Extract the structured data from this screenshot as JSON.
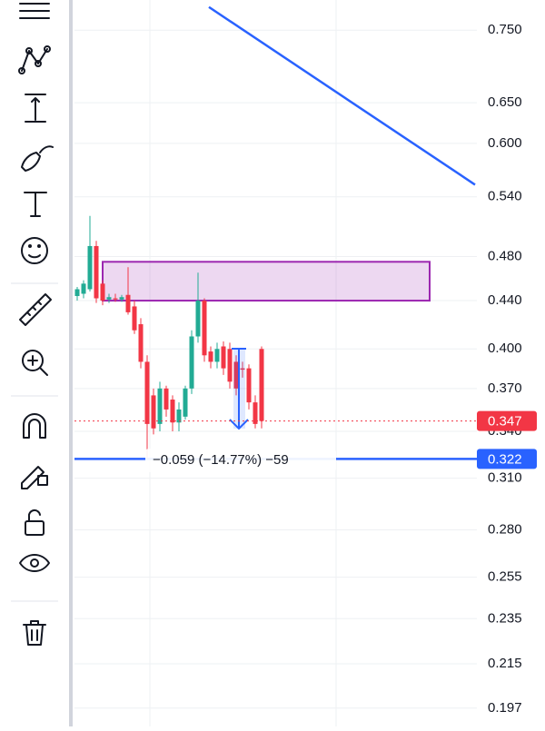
{
  "chart_data": {
    "type": "candlestick",
    "log_scale": true,
    "ylim": [
      0.19,
      0.796
    ],
    "yticks": [
      {
        "value": 0.75,
        "label": "0.750"
      },
      {
        "value": 0.65,
        "label": "0.650"
      },
      {
        "value": 0.6,
        "label": "0.600"
      },
      {
        "value": 0.54,
        "label": "0.540"
      },
      {
        "value": 0.48,
        "label": "0.480"
      },
      {
        "value": 0.44,
        "label": "0.440"
      },
      {
        "value": 0.4,
        "label": "0.400"
      },
      {
        "value": 0.37,
        "label": "0.370"
      },
      {
        "value": 0.34,
        "label": "0.340"
      },
      {
        "value": 0.31,
        "label": "0.310"
      },
      {
        "value": 0.28,
        "label": "0.280"
      },
      {
        "value": 0.255,
        "label": "0.255"
      },
      {
        "value": 0.235,
        "label": "0.235"
      },
      {
        "value": 0.215,
        "label": "0.215"
      },
      {
        "value": 0.197,
        "label": "0.197"
      }
    ],
    "grid": true,
    "up_color": "#22ab94",
    "down_color": "#f23645",
    "open": [
      0.444,
      0.446,
      0.45,
      0.49,
      0.455,
      0.441,
      0.442,
      0.441,
      0.445,
      0.435,
      0.42,
      0.39,
      0.365,
      0.345,
      0.37,
      0.362,
      0.346,
      0.35,
      0.37,
      0.41,
      0.44,
      0.398,
      0.39,
      0.402,
      0.4,
      0.39,
      0.385,
      0.385,
      0.36,
      0.4
    ],
    "high": [
      0.452,
      0.458,
      0.52,
      0.495,
      0.458,
      0.446,
      0.446,
      0.445,
      0.47,
      0.44,
      0.425,
      0.395,
      0.37,
      0.375,
      0.372,
      0.365,
      0.36,
      0.372,
      0.415,
      0.465,
      0.442,
      0.402,
      0.405,
      0.406,
      0.405,
      0.395,
      0.39,
      0.388,
      0.365,
      0.402
    ],
    "low": [
      0.44,
      0.442,
      0.448,
      0.438,
      0.436,
      0.438,
      0.439,
      0.439,
      0.428,
      0.412,
      0.385,
      0.322,
      0.338,
      0.34,
      0.35,
      0.34,
      0.34,
      0.348,
      0.366,
      0.405,
      0.39,
      0.385,
      0.385,
      0.38,
      0.37,
      0.365,
      0.378,
      0.355,
      0.342,
      0.342
    ],
    "close": [
      0.45,
      0.455,
      0.49,
      0.442,
      0.44,
      0.443,
      0.441,
      0.443,
      0.43,
      0.415,
      0.39,
      0.345,
      0.342,
      0.37,
      0.355,
      0.346,
      0.355,
      0.37,
      0.41,
      0.44,
      0.395,
      0.39,
      0.4,
      0.385,
      0.375,
      0.37,
      0.384,
      0.36,
      0.345,
      0.347
    ],
    "zone": [
      0.44,
      0.475
    ],
    "zone_color": "#9c27b0",
    "trendline": [
      0.785,
      0.553
    ],
    "trendline_color": "#2962ff",
    "current_price": 0.347,
    "current_price_color": "#f23645",
    "level_price": 0.322,
    "level_color": "#2962ff",
    "measure_label": "−0.059 (−14.77%) −59"
  }
}
